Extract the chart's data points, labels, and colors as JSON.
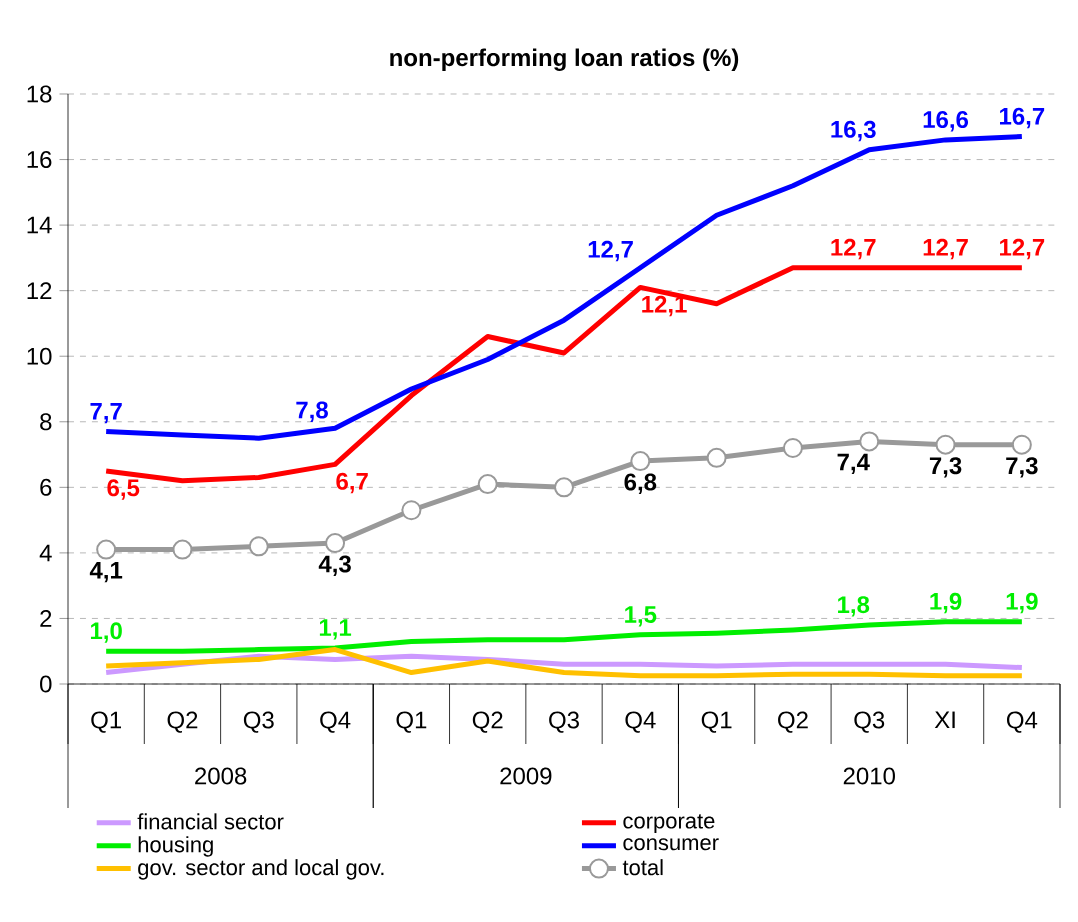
{
  "chart_data": {
    "type": "line",
    "title": "non-performing loan ratios (%)",
    "categories": [
      "Q1",
      "Q2",
      "Q3",
      "Q4",
      "Q1",
      "Q2",
      "Q3",
      "Q4",
      "Q1",
      "Q2",
      "Q3",
      "XI",
      "Q4"
    ],
    "annotations": [
      "2008",
      "2009",
      "2010"
    ],
    "ylim": [
      0,
      18
    ],
    "yticks": [
      0,
      2,
      4,
      6,
      8,
      10,
      12,
      14,
      16,
      18
    ],
    "grid": "y",
    "legend": "bottom",
    "series": [
      {
        "name": "financial sector",
        "color": "#cc99ff",
        "values": [
          0.35,
          0.6,
          0.85,
          0.75,
          0.85,
          0.75,
          0.6,
          0.6,
          0.55,
          0.6,
          0.6,
          0.6,
          0.5
        ]
      },
      {
        "name": "corporate",
        "color": "#ff0000",
        "values": [
          6.5,
          6.2,
          6.3,
          6.7,
          8.8,
          10.6,
          10.1,
          12.1,
          11.6,
          12.7,
          12.7,
          12.7,
          12.7
        ],
        "value_labels": [
          "6,5",
          null,
          null,
          "6,7",
          null,
          null,
          null,
          "12,1",
          null,
          null,
          "12,7",
          "12,7",
          "12,7"
        ]
      },
      {
        "name": "housing",
        "color": "#00ee00",
        "values": [
          1.0,
          1.0,
          1.05,
          1.1,
          1.3,
          1.35,
          1.35,
          1.5,
          1.55,
          1.65,
          1.8,
          1.9,
          1.9
        ],
        "value_labels": [
          "1,0",
          null,
          null,
          "1,1",
          null,
          null,
          null,
          "1,5",
          null,
          null,
          "1,8",
          "1,9",
          "1,9"
        ]
      },
      {
        "name": "consumer",
        "color": "#0000ff",
        "values": [
          7.7,
          7.6,
          7.5,
          7.8,
          9.0,
          9.9,
          11.1,
          12.7,
          14.3,
          15.2,
          16.3,
          16.6,
          16.7
        ],
        "value_labels": [
          "7,7",
          null,
          null,
          "7,8",
          null,
          null,
          null,
          "12,7",
          null,
          null,
          "16,3",
          "16,6",
          "16,7"
        ]
      },
      {
        "name": "gov. sector and local gov.",
        "color": "#ffc000",
        "values": [
          0.55,
          0.65,
          0.75,
          1.05,
          0.35,
          0.7,
          0.35,
          0.25,
          0.25,
          0.3,
          0.3,
          0.25,
          0.25
        ]
      },
      {
        "name": "total",
        "color": "#999999",
        "marker": "circle",
        "values": [
          4.1,
          4.1,
          4.2,
          4.3,
          5.3,
          6.1,
          6.0,
          6.8,
          6.9,
          7.2,
          7.4,
          7.3,
          7.3
        ],
        "value_labels": [
          "4,1",
          null,
          null,
          "4,3",
          null,
          null,
          null,
          "6,8",
          null,
          null,
          "7,4",
          "7,3",
          "7,3"
        ]
      }
    ]
  }
}
